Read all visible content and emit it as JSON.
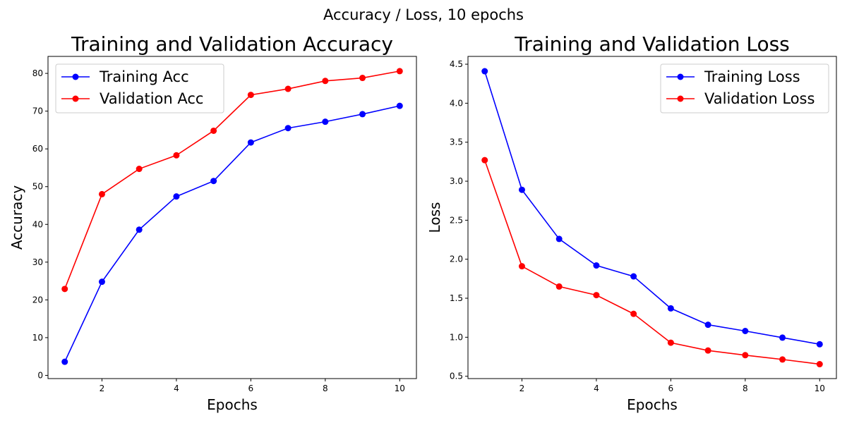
{
  "figure": {
    "suptitle": "Accuracy / Loss, 10 epochs"
  },
  "chart_data": [
    {
      "type": "line",
      "title": "Training and Validation Accuracy",
      "xlabel": "Epochs",
      "ylabel": "Accuracy",
      "x": [
        1,
        2,
        3,
        4,
        5,
        6,
        7,
        8,
        9,
        10
      ],
      "xticks": [
        2,
        4,
        6,
        8,
        10
      ],
      "yticks": [
        0,
        10,
        20,
        30,
        40,
        50,
        60,
        70,
        80
      ],
      "ytick_labels": [
        "0",
        "10",
        "20",
        "30",
        "40",
        "50",
        "60",
        "70",
        "80"
      ],
      "xlim": [
        0.55,
        10.45
      ],
      "ylim": [
        -0.85,
        84.5
      ],
      "grid": false,
      "legend_position": "upper-left",
      "series": [
        {
          "name": "Training Acc",
          "color": "#0000ff",
          "values": [
            3.6,
            24.8,
            38.6,
            47.4,
            51.5,
            61.7,
            65.5,
            67.2,
            69.2,
            71.4
          ]
        },
        {
          "name": "Validation Acc",
          "color": "#ff0000",
          "values": [
            22.9,
            48.0,
            54.7,
            58.3,
            64.8,
            74.3,
            75.9,
            78.0,
            78.8,
            80.6
          ]
        }
      ]
    },
    {
      "type": "line",
      "title": "Training and Validation Loss",
      "xlabel": "Epochs",
      "ylabel": "Loss",
      "x": [
        1,
        2,
        3,
        4,
        5,
        6,
        7,
        8,
        9,
        10
      ],
      "xticks": [
        2,
        4,
        6,
        8,
        10
      ],
      "yticks": [
        0.5,
        1.0,
        1.5,
        2.0,
        2.5,
        3.0,
        3.5,
        4.0,
        4.5
      ],
      "ytick_labels": [
        "0.5",
        "1.0",
        "1.5",
        "2.0",
        "2.5",
        "3.0",
        "3.5",
        "4.0",
        "4.5"
      ],
      "xlim": [
        0.55,
        10.45
      ],
      "ylim": [
        0.47,
        4.6
      ],
      "grid": false,
      "legend_position": "upper-right",
      "series": [
        {
          "name": "Training Loss",
          "color": "#0000ff",
          "values": [
            4.41,
            2.89,
            2.26,
            1.92,
            1.78,
            1.37,
            1.16,
            1.08,
            0.995,
            0.91
          ]
        },
        {
          "name": "Validation Loss",
          "color": "#ff0000",
          "values": [
            3.27,
            1.91,
            1.65,
            1.54,
            1.3,
            0.93,
            0.83,
            0.77,
            0.715,
            0.655
          ]
        }
      ]
    }
  ]
}
